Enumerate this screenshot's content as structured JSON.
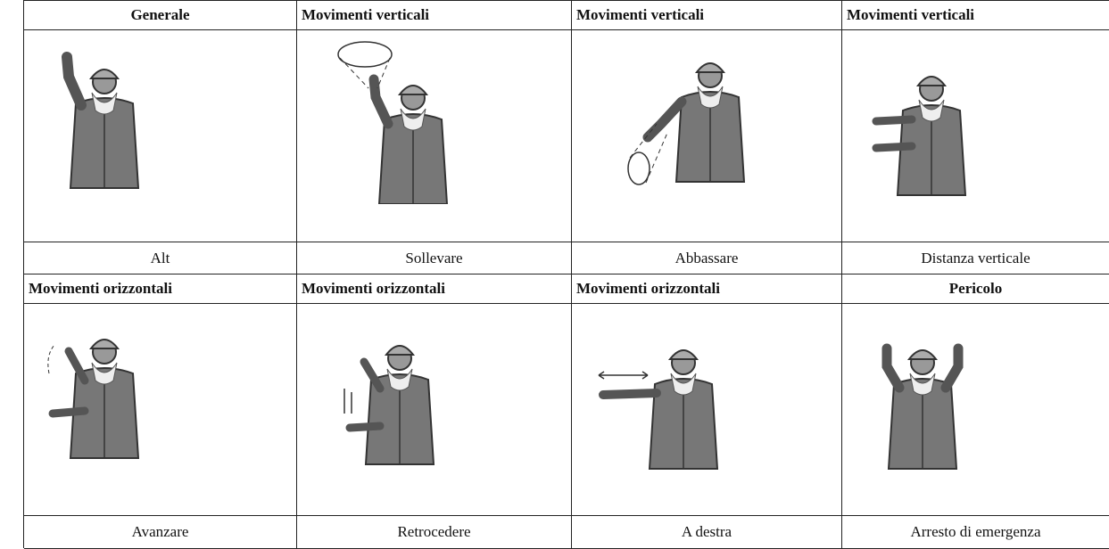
{
  "table": {
    "rows": [
      {
        "cells": [
          {
            "header": "Generale",
            "caption": "Alt"
          },
          {
            "header": "Movimenti verticali",
            "caption": "Sollevare"
          },
          {
            "header": "Movimenti verticali",
            "caption": "Abbassare"
          },
          {
            "header": "Movimenti verticali",
            "caption": "Distanza verticale"
          }
        ]
      },
      {
        "cells": [
          {
            "header": "Movimenti orizzontali",
            "caption": "Avanzare"
          },
          {
            "header": "Movimenti orizzontali",
            "caption": "Retrocedere"
          },
          {
            "header": "Movimenti orizzontali",
            "caption": "A destra"
          },
          {
            "header": "Pericolo",
            "caption": "Arresto di emergenza"
          }
        ]
      }
    ]
  }
}
